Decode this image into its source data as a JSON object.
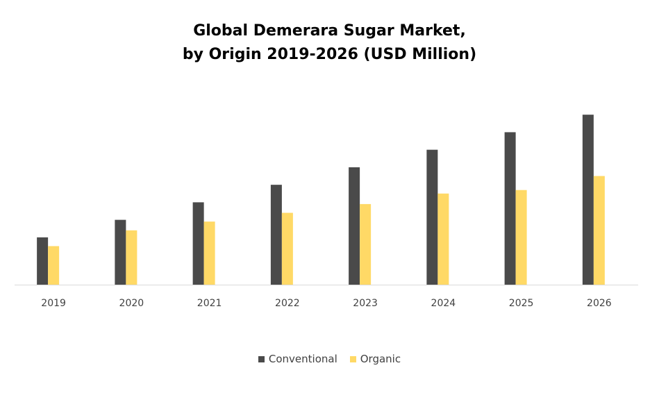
{
  "chart_data": {
    "type": "bar",
    "title_lines": [
      "Global Demerara Sugar Market,",
      "by Origin 2019-2026 (USD Million)"
    ],
    "categories": [
      "2019",
      "2020",
      "2021",
      "2022",
      "2023",
      "2024",
      "2025",
      "2026"
    ],
    "series": [
      {
        "name": "Conventional",
        "color": "#4a4a4a",
        "values": [
          27,
          37,
          47,
          57,
          67,
          77,
          87,
          97
        ]
      },
      {
        "name": "Organic",
        "color": "#ffd966",
        "values": [
          22,
          31,
          36,
          41,
          46,
          52,
          54,
          62
        ]
      }
    ],
    "xlabel": "",
    "ylabel": "",
    "ylim": [
      0,
      105
    ],
    "grid": false,
    "legend_position": "bottom"
  }
}
